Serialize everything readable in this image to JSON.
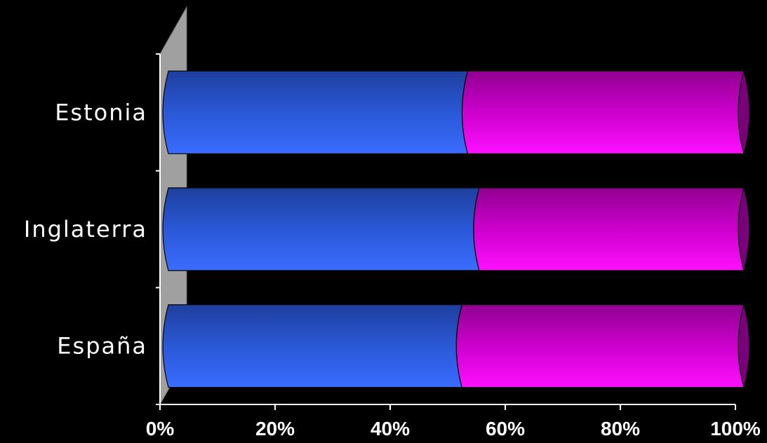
{
  "chart_data": {
    "type": "bar",
    "orientation": "horizontal",
    "stacked": "percent",
    "categories": [
      "Estonia",
      "Inglaterra",
      "España"
    ],
    "series": [
      {
        "values": [
          52,
          54,
          51
        ],
        "color": "#2a58d8"
      },
      {
        "values": [
          48,
          46,
          49
        ],
        "color": "#e00ae0"
      }
    ],
    "x_ticks": [
      "0%",
      "20%",
      "40%",
      "60%",
      "80%",
      "100%"
    ],
    "xlim": [
      0,
      100
    ],
    "title": "",
    "xlabel": "",
    "ylabel": "",
    "legend": "none",
    "grid": false,
    "background": "#000000"
  }
}
